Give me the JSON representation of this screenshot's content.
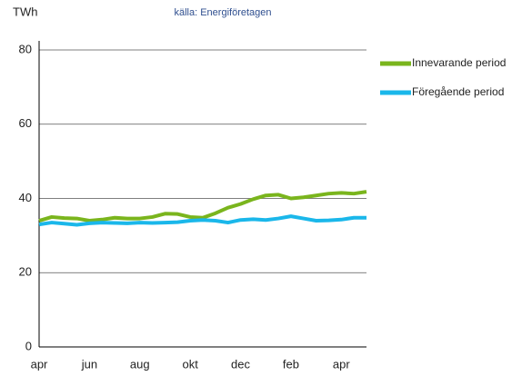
{
  "chart_data": {
    "type": "line",
    "subtitle": "källa: Energiföretagen",
    "y_label": "TWh",
    "categories": [
      "apr",
      null,
      null,
      null,
      "jun",
      null,
      null,
      null,
      "aug",
      null,
      null,
      null,
      "okt",
      null,
      null,
      null,
      "dec",
      null,
      null,
      null,
      "feb",
      null,
      null,
      null,
      "apr",
      null,
      null
    ],
    "series": [
      {
        "name": "Innevarande period",
        "color": "#7ab51d",
        "values": [
          34,
          35,
          34.7,
          34.6,
          34,
          34.3,
          34.8,
          34.6,
          34.6,
          35,
          35.9,
          35.8,
          35,
          34.8,
          36,
          37.5,
          38.5,
          39.8,
          40.8,
          41,
          40,
          40.3,
          40.8,
          41.3,
          41.5,
          41.3,
          41.8
        ]
      },
      {
        "name": "Föregående period",
        "color": "#1ab7ea",
        "values": [
          33,
          33.5,
          33.2,
          32.9,
          33.3,
          33.5,
          33.4,
          33.3,
          33.5,
          33.4,
          33.5,
          33.6,
          34,
          34.2,
          34,
          33.5,
          34.2,
          34.4,
          34.2,
          34.6,
          35.2,
          34.6,
          34,
          34.1,
          34.3,
          34.8,
          34.8
        ]
      }
    ],
    "ylim": [
      0,
      80
    ],
    "yticks": [
      0,
      20,
      40,
      60,
      80
    ],
    "grid": true
  }
}
